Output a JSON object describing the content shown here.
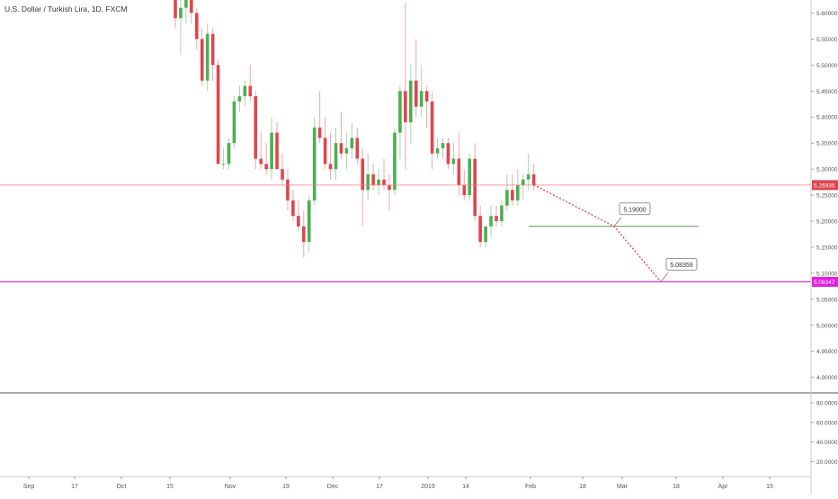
{
  "header": {
    "symbol_title": "U.S. Dollar / Turkish Lira, 1D, FXCM"
  },
  "colors": {
    "up": "#4caf50",
    "down": "#e0444f",
    "price_line": "#ef7f7f",
    "target_line": "#e020e0",
    "support_line": "#5a9a5a",
    "projection": "#e0444f",
    "axis_text": "#555555"
  },
  "chart_data": {
    "type": "candlestick",
    "ylim": [
      4.87,
      5.625
    ],
    "price_ticks": [
      "5.60000",
      "5.55000",
      "5.50000",
      "5.45000",
      "5.40000",
      "5.35000",
      "5.30000",
      "5.25000",
      "5.20000",
      "5.15000",
      "5.10000",
      "5.05000",
      "5.00000",
      "4.95000",
      "4.90000"
    ],
    "indicator_ylim": [
      5,
      90
    ],
    "indicator_ticks": [
      "80.0000",
      "60.0000",
      "40.0000",
      "20.0000"
    ],
    "time_ticks": [
      "Sep",
      "17",
      "Oct",
      "15",
      "Nov",
      "19",
      "Dec",
      "17",
      "2019",
      "14",
      "Feb",
      "18",
      "Mar",
      "18",
      "Apr",
      "15"
    ],
    "current_price": {
      "value": 5.26935,
      "label": "5.26935"
    },
    "target_level": {
      "value": 5.08347,
      "label": "5.08347"
    },
    "support_level": {
      "value": 5.19,
      "label": "5.19000"
    },
    "target_callout": {
      "value": 5.08359,
      "label": "5.08359"
    },
    "candles": [
      [
        5.65,
        5.66,
        5.57,
        5.59
      ],
      [
        5.59,
        5.63,
        5.52,
        5.61
      ],
      [
        5.61,
        5.66,
        5.58,
        5.64
      ],
      [
        5.63,
        5.65,
        5.58,
        5.6
      ],
      [
        5.6,
        5.61,
        5.53,
        5.55
      ],
      [
        5.55,
        5.57,
        5.46,
        5.47
      ],
      [
        5.47,
        5.58,
        5.45,
        5.56
      ],
      [
        5.56,
        5.57,
        5.47,
        5.5
      ],
      [
        5.5,
        5.51,
        5.31,
        5.31
      ],
      [
        5.31,
        5.34,
        5.3,
        5.31
      ],
      [
        5.31,
        5.36,
        5.3,
        5.35
      ],
      [
        5.35,
        5.44,
        5.34,
        5.43
      ],
      [
        5.43,
        5.46,
        5.41,
        5.44
      ],
      [
        5.44,
        5.47,
        5.42,
        5.46
      ],
      [
        5.46,
        5.5,
        5.43,
        5.44
      ],
      [
        5.44,
        5.45,
        5.3,
        5.32
      ],
      [
        5.32,
        5.37,
        5.3,
        5.31
      ],
      [
        5.31,
        5.35,
        5.29,
        5.3
      ],
      [
        5.3,
        5.4,
        5.28,
        5.37
      ],
      [
        5.37,
        5.39,
        5.3,
        5.3
      ],
      [
        5.3,
        5.33,
        5.27,
        5.28
      ],
      [
        5.28,
        5.3,
        5.22,
        5.24
      ],
      [
        5.24,
        5.26,
        5.2,
        5.21
      ],
      [
        5.21,
        5.24,
        5.18,
        5.19
      ],
      [
        5.19,
        5.22,
        5.13,
        5.16
      ],
      [
        5.16,
        5.25,
        5.14,
        5.24
      ],
      [
        5.24,
        5.4,
        5.23,
        5.38
      ],
      [
        5.38,
        5.45,
        5.35,
        5.36
      ],
      [
        5.36,
        5.4,
        5.3,
        5.31
      ],
      [
        5.31,
        5.37,
        5.28,
        5.3
      ],
      [
        5.3,
        5.38,
        5.28,
        5.35
      ],
      [
        5.35,
        5.41,
        5.32,
        5.33
      ],
      [
        5.33,
        5.37,
        5.3,
        5.34
      ],
      [
        5.34,
        5.39,
        5.32,
        5.36
      ],
      [
        5.36,
        5.38,
        5.31,
        5.32
      ],
      [
        5.32,
        5.34,
        5.19,
        5.26
      ],
      [
        5.26,
        5.33,
        5.24,
        5.29
      ],
      [
        5.29,
        5.31,
        5.26,
        5.27
      ],
      [
        5.27,
        5.3,
        5.25,
        5.28
      ],
      [
        5.28,
        5.32,
        5.26,
        5.27
      ],
      [
        5.27,
        5.29,
        5.22,
        5.26
      ],
      [
        5.26,
        5.38,
        5.25,
        5.37
      ],
      [
        5.37,
        5.46,
        5.32,
        5.45
      ],
      [
        5.45,
        5.62,
        5.3,
        5.39
      ],
      [
        5.39,
        5.5,
        5.35,
        5.47
      ],
      [
        5.47,
        5.55,
        5.4,
        5.42
      ],
      [
        5.42,
        5.5,
        5.4,
        5.45
      ],
      [
        5.45,
        5.46,
        5.38,
        5.43
      ],
      [
        5.43,
        5.45,
        5.3,
        5.33
      ],
      [
        5.33,
        5.36,
        5.32,
        5.34
      ],
      [
        5.34,
        5.36,
        5.32,
        5.35
      ],
      [
        5.35,
        5.36,
        5.3,
        5.31
      ],
      [
        5.31,
        5.35,
        5.29,
        5.32
      ],
      [
        5.32,
        5.37,
        5.25,
        5.27
      ],
      [
        5.27,
        5.3,
        5.24,
        5.25
      ],
      [
        5.25,
        5.33,
        5.24,
        5.32
      ],
      [
        5.32,
        5.35,
        5.2,
        5.21
      ],
      [
        5.21,
        5.23,
        5.15,
        5.16
      ],
      [
        5.16,
        5.19,
        5.15,
        5.19
      ],
      [
        5.19,
        5.23,
        5.17,
        5.21
      ],
      [
        5.21,
        5.23,
        5.19,
        5.2
      ],
      [
        5.2,
        5.24,
        5.19,
        5.23
      ],
      [
        5.23,
        5.29,
        5.22,
        5.26
      ],
      [
        5.26,
        5.29,
        5.23,
        5.24
      ],
      [
        5.24,
        5.3,
        5.23,
        5.27
      ],
      [
        5.27,
        5.29,
        5.24,
        5.28
      ],
      [
        5.28,
        5.33,
        5.26,
        5.29
      ],
      [
        5.29,
        5.31,
        5.26,
        5.27
      ]
    ]
  }
}
